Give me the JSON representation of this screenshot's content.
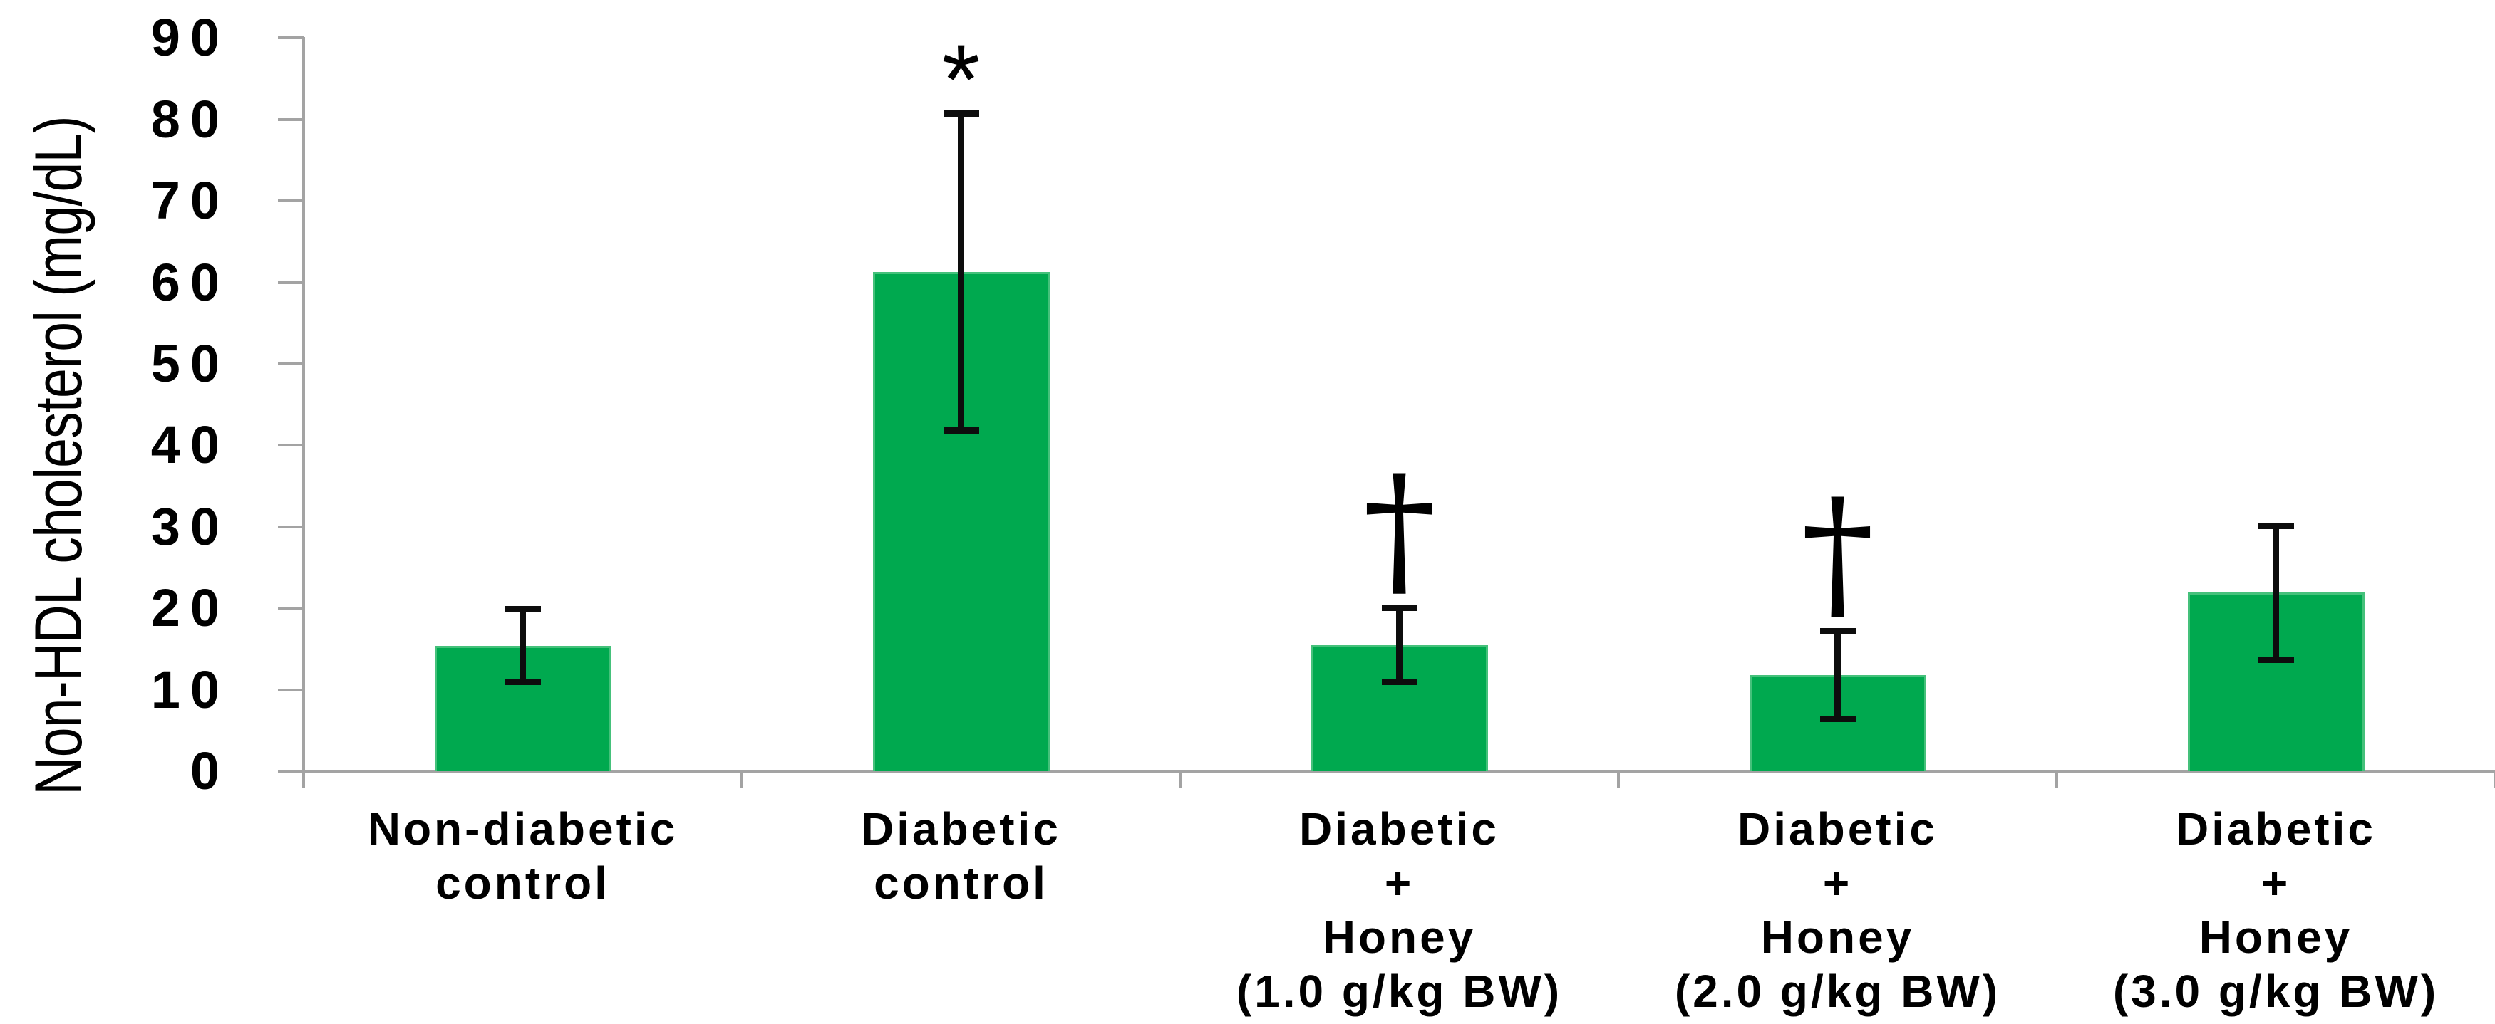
{
  "chart_data": {
    "type": "bar",
    "title": "",
    "ylabel": "Non-HDL cholesterol (mg/dL)",
    "xlabel": "",
    "ylim": [
      0,
      90
    ],
    "ytick_step": 10,
    "yticks": [
      0,
      10,
      20,
      30,
      40,
      50,
      60,
      70,
      80,
      90
    ],
    "grid": false,
    "legend": false,
    "background_color": "#ffffff",
    "bar_color": "#00a94f",
    "bar_border_color": "#45c17b",
    "error_bar_color": "#0d0d0d",
    "axis_color": "#a3a3a3",
    "text_color": "#000000",
    "categories": [
      {
        "label_lines": [
          "Non-diabetic",
          "control"
        ],
        "label": "Non-diabetic control",
        "value": 15.4,
        "error": 4.5,
        "annotation": ""
      },
      {
        "label_lines": [
          "Diabetic",
          "control"
        ],
        "label": "Diabetic control",
        "value": 61.3,
        "error": 19.5,
        "annotation": "*"
      },
      {
        "label_lines": [
          "Diabetic",
          "+",
          "Honey",
          "(1.0 g/kg BW)"
        ],
        "label": "Diabetic + Honey (1.0 g/kg BW)",
        "value": 15.5,
        "error": 4.6,
        "annotation": "†"
      },
      {
        "label_lines": [
          "Diabetic",
          "+",
          "Honey",
          "(2.0 g/kg BW)"
        ],
        "label": "Diabetic + Honey (2.0 g/kg BW)",
        "value": 11.8,
        "error": 5.4,
        "annotation": "†"
      },
      {
        "label_lines": [
          "Diabetic",
          "+",
          "Honey",
          "(3.0 g/kg BW)"
        ],
        "label": "Diabetic + Honey (3.0 g/kg BW)",
        "value": 21.9,
        "error": 8.3,
        "annotation": ""
      }
    ]
  }
}
